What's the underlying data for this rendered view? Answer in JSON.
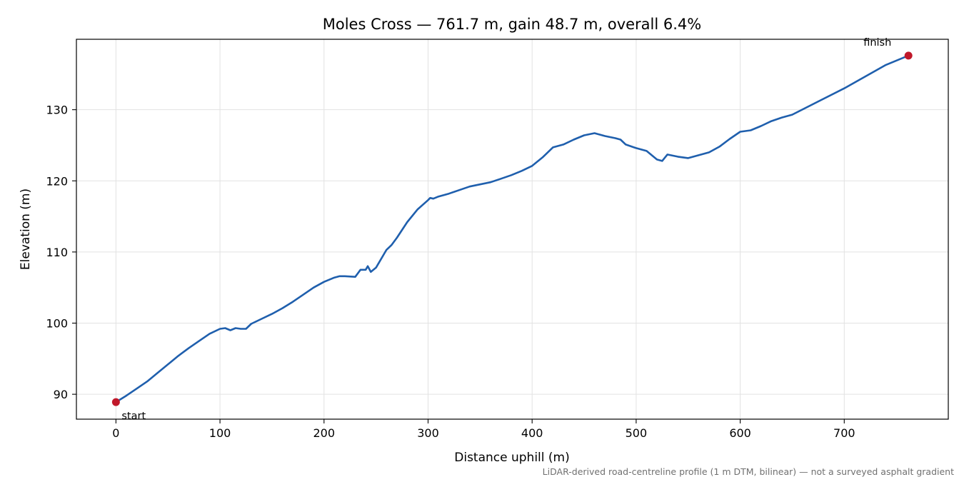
{
  "chart_data": {
    "type": "line",
    "title": "Moles Cross — 761.7 m, gain 48.7 m, overall 6.4%",
    "xlabel": "Distance uphill (m)",
    "ylabel": "Elevation (m)",
    "xlim": [
      -38,
      800
    ],
    "ylim": [
      86.5,
      139.9
    ],
    "x_ticks": [
      0,
      100,
      200,
      300,
      400,
      500,
      600,
      700
    ],
    "y_ticks": [
      90,
      100,
      110,
      120,
      130
    ],
    "grid": true,
    "line_color": "#1f5fad",
    "marker_color": "#c0182a",
    "series": [
      {
        "x": [
          0,
          10,
          20,
          30,
          40,
          50,
          60,
          70,
          80,
          90,
          100,
          105,
          110,
          115,
          120,
          125,
          130,
          140,
          150,
          160,
          170,
          180,
          190,
          200,
          210,
          215,
          220,
          230,
          235,
          240,
          242,
          245,
          250,
          260,
          265,
          270,
          280,
          290,
          300,
          302,
          305,
          310,
          320,
          330,
          340,
          350,
          360,
          370,
          380,
          390,
          400,
          410,
          420,
          430,
          440,
          450,
          460,
          465,
          470,
          480,
          485,
          490,
          500,
          510,
          520,
          525,
          530,
          540,
          550,
          560,
          570,
          580,
          590,
          600,
          610,
          620,
          630,
          640,
          650,
          700,
          740,
          761.7
        ],
        "y": [
          88.9,
          89.8,
          90.8,
          91.8,
          93.0,
          94.2,
          95.4,
          96.5,
          97.5,
          98.5,
          99.2,
          99.3,
          99.0,
          99.3,
          99.2,
          99.2,
          99.9,
          100.6,
          101.3,
          102.1,
          103.0,
          104.0,
          105.0,
          105.8,
          106.4,
          106.6,
          106.6,
          106.5,
          107.5,
          107.5,
          108.0,
          107.2,
          107.8,
          110.3,
          111.0,
          112.0,
          114.2,
          116.0,
          117.3,
          117.6,
          117.5,
          117.8,
          118.2,
          118.7,
          119.2,
          119.5,
          119.8,
          120.3,
          120.8,
          121.4,
          122.1,
          123.3,
          124.7,
          125.1,
          125.8,
          126.4,
          126.7,
          126.5,
          126.3,
          126.0,
          125.8,
          125.1,
          124.6,
          124.2,
          123.0,
          122.8,
          123.7,
          123.4,
          123.2,
          123.6,
          124.0,
          124.8,
          125.9,
          126.9,
          127.1,
          127.7,
          128.4,
          128.9,
          129.3,
          133.0,
          136.3,
          137.6
        ]
      }
    ],
    "annotations": [
      {
        "text": "start",
        "x": 0,
        "y": 88.9
      },
      {
        "text": "finish",
        "x": 761.7,
        "y": 137.6
      }
    ],
    "footnote": "LiDAR-derived road-centreline profile (1 m DTM, bilinear) — not a surveyed asphalt gradient"
  }
}
